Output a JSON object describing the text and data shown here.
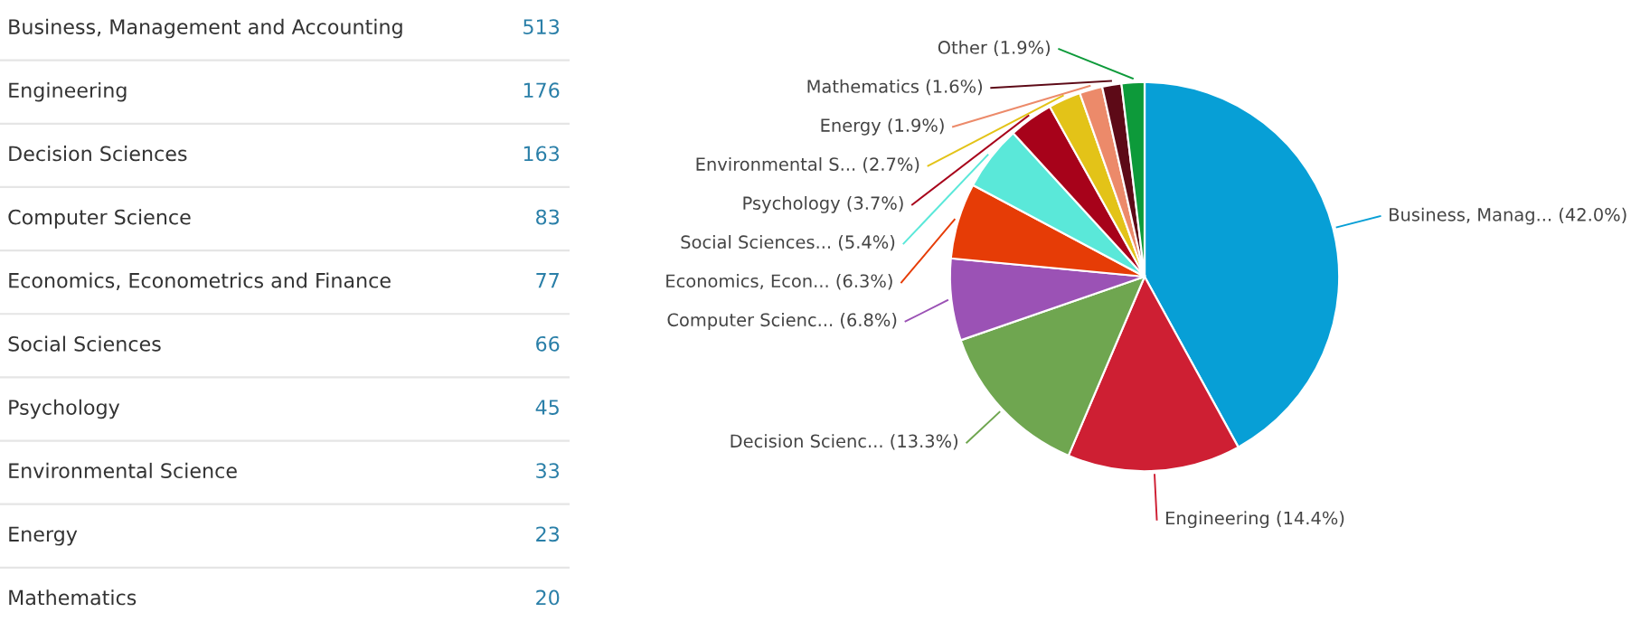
{
  "chart_data": [
    {
      "type": "other",
      "categories": [
        "Business, Management and Accounting",
        "Engineering",
        "Decision Sciences",
        "Computer Science",
        "Economics, Econometrics and Finance",
        "Social Sciences",
        "Psychology",
        "Environmental Science",
        "Energy",
        "Mathematics"
      ],
      "values": [
        513,
        176,
        163,
        83,
        77,
        66,
        45,
        33,
        23,
        20
      ],
      "value_labels": [
        "513",
        "176",
        "163",
        "83",
        "77",
        "66",
        "45",
        "33",
        "23",
        "20"
      ],
      "color": "#2a7fa8"
    },
    {
      "type": "pie",
      "categories": [
        "Business, Manag... (42.0%)",
        "Engineering (14.4%)",
        "Decision Scienc... (13.3%)",
        "Computer Scienc... (6.8%)",
        "Economics, Econ... (6.3%)",
        "Social Sciences... (5.4%)",
        "Psychology (3.7%)",
        "Environmental S... (2.7%)",
        "Energy (1.9%)",
        "Mathematics (1.6%)",
        "Other (1.9%)"
      ],
      "values": [
        42.0,
        14.4,
        13.3,
        6.8,
        6.3,
        5.4,
        3.7,
        2.7,
        1.9,
        1.6,
        1.9
      ],
      "colors": [
        "#079fd6",
        "#ce1f33",
        "#6fa650",
        "#9b52b5",
        "#e63c06",
        "#5ae8d9",
        "#a7021a",
        "#e3c318",
        "#ec8a6a",
        "#5d0a17",
        "#0d9a3a"
      ]
    }
  ]
}
